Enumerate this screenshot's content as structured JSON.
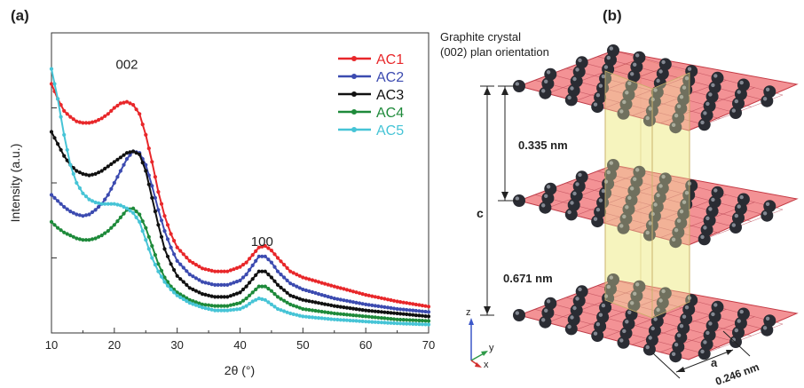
{
  "colors": {
    "AC1": "#e8272a",
    "AC2": "#3c4bb0",
    "AC3": "#111111",
    "AC4": "#1e8a3a",
    "AC5": "#46c4d6",
    "plane_fill": "#f07a7e",
    "plane_edge": "#c43a44",
    "column_fill": "#f3f1b0",
    "atom": "#2a2c33"
  },
  "chart_data": {
    "type": "line",
    "panel_label": "(a)",
    "xlabel": "2θ (°)",
    "ylabel": "Intensity (a.u.)",
    "xlim": [
      10,
      70
    ],
    "ylim": [
      0,
      100
    ],
    "xticks": [
      "10",
      "20",
      "30",
      "40",
      "50",
      "60",
      "70"
    ],
    "grid": false,
    "legend_position": "top-right",
    "annotations": [
      {
        "text": "002",
        "x": 22,
        "y": 88
      },
      {
        "text": "100",
        "x": 43.5,
        "y": 29
      }
    ],
    "series": [
      {
        "name": "AC1",
        "x": [
          10,
          11,
          12,
          13,
          14,
          15,
          16,
          17,
          18,
          19,
          20,
          21,
          22,
          23,
          24,
          25,
          26,
          27,
          28,
          29,
          30,
          32,
          34,
          36,
          38,
          40,
          41,
          42,
          43,
          44,
          45,
          46,
          48,
          50,
          55,
          60,
          65,
          70
        ],
        "y": [
          83,
          78,
          74,
          72,
          70.5,
          70,
          70,
          70.5,
          71.5,
          73,
          75,
          76.5,
          77,
          76,
          73,
          66,
          57,
          47,
          39,
          33,
          28.5,
          24,
          21.5,
          20.5,
          20.5,
          22,
          23.5,
          26,
          28.5,
          29,
          27.5,
          25,
          20.5,
          18.5,
          15.5,
          12.7,
          10.5,
          8.8
        ]
      },
      {
        "name": "AC2",
        "x": [
          10,
          11,
          12,
          13,
          14,
          15,
          16,
          17,
          18,
          19,
          20,
          21,
          22,
          23,
          24,
          25,
          26,
          27,
          28,
          29,
          30,
          32,
          34,
          36,
          38,
          40,
          41,
          42,
          43,
          44,
          45,
          46,
          48,
          50,
          55,
          60,
          65,
          70
        ],
        "y": [
          46,
          44,
          42,
          40.5,
          39.5,
          39,
          39.5,
          41,
          43,
          46,
          50,
          54,
          58,
          60.5,
          60,
          56,
          49,
          41,
          34,
          28.5,
          24,
          19.5,
          17,
          16,
          16,
          17.5,
          19.5,
          22.5,
          25.5,
          25.5,
          23.5,
          20.5,
          16.5,
          14.5,
          11.5,
          9.5,
          8,
          7
        ]
      },
      {
        "name": "AC3",
        "x": [
          10,
          11,
          12,
          13,
          14,
          15,
          16,
          17,
          18,
          19,
          20,
          21,
          22,
          23,
          24,
          25,
          26,
          27,
          28,
          29,
          30,
          32,
          34,
          36,
          38,
          40,
          41,
          42,
          43,
          44,
          45,
          46,
          48,
          50,
          55,
          60,
          65,
          70
        ],
        "y": [
          67,
          63,
          59,
          56,
          54,
          53,
          52.5,
          53,
          54,
          55.5,
          57,
          58.5,
          60,
          60.5,
          59.5,
          54,
          45,
          36,
          28,
          23,
          19,
          15,
          13,
          12,
          12,
          13.5,
          15.5,
          18,
          20.5,
          20.5,
          18.5,
          16,
          12.5,
          11,
          9,
          7.5,
          6.5,
          5.5
        ]
      },
      {
        "name": "AC4",
        "x": [
          10,
          11,
          12,
          13,
          14,
          15,
          16,
          17,
          18,
          19,
          20,
          21,
          22,
          23,
          24,
          25,
          26,
          27,
          28,
          29,
          30,
          32,
          34,
          36,
          38,
          40,
          41,
          42,
          43,
          44,
          45,
          46,
          48,
          50,
          55,
          60,
          65,
          70
        ],
        "y": [
          37,
          35,
          33.5,
          32.5,
          31.5,
          31,
          31,
          31.5,
          32.5,
          34,
          36,
          38.5,
          41,
          41.5,
          39.5,
          35,
          29,
          23,
          18.5,
          15.5,
          13.5,
          11,
          9.5,
          9,
          9,
          10,
          11.5,
          13.5,
          15.5,
          15.5,
          14,
          12,
          9.5,
          8,
          6.5,
          5.5,
          4.5,
          4
        ]
      },
      {
        "name": "AC5",
        "x": [
          10,
          11,
          12,
          13,
          14,
          15,
          16,
          17,
          18,
          19,
          20,
          21,
          22,
          23,
          24,
          25,
          26,
          27,
          28,
          29,
          30,
          32,
          34,
          36,
          38,
          40,
          41,
          42,
          43,
          44,
          45,
          46,
          48,
          50,
          55,
          60,
          65,
          70
        ],
        "y": [
          88,
          78,
          66,
          56,
          50,
          46.5,
          44.5,
          43.5,
          43,
          43,
          43,
          42.5,
          41.5,
          40,
          37,
          31,
          25,
          20.5,
          17,
          14.5,
          12.5,
          10,
          8.5,
          7.5,
          7.5,
          8,
          9,
          10.5,
          11.5,
          11,
          9.5,
          8,
          6.5,
          5.5,
          4.5,
          3.8,
          3.2,
          2.8
        ]
      }
    ]
  },
  "diagram": {
    "panel_label": "(b)",
    "title_line1": "Graphite crystal",
    "title_line2": "(002) plan orientation",
    "dim_c": "c",
    "dim_spacing": "0.335 nm",
    "dim_c_value": "0.671 nm",
    "dim_a": "a",
    "dim_a_value": "0.246 nm",
    "axis_z": "z",
    "axis_y": "y",
    "axis_x": "x"
  }
}
